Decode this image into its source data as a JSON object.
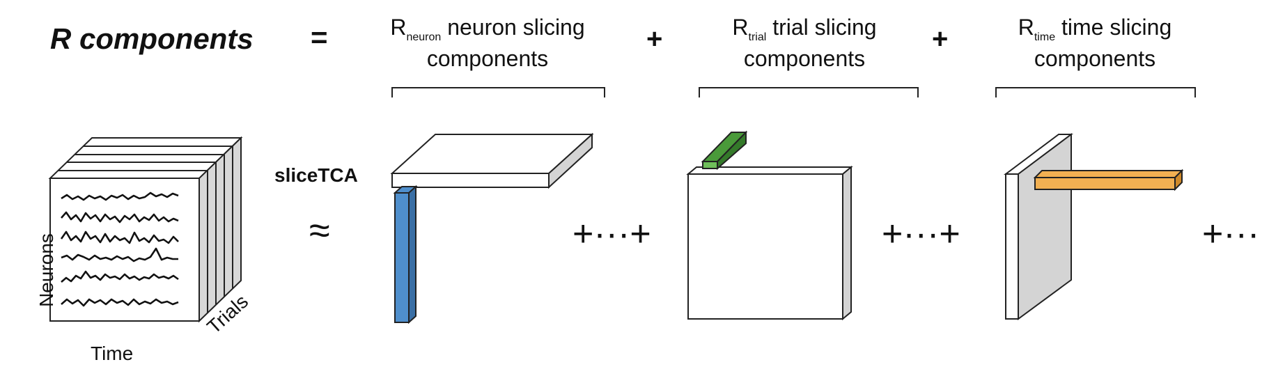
{
  "header": {
    "title": "R components",
    "equals": "=",
    "plus": "+"
  },
  "groups": [
    {
      "r_main": "R",
      "r_sub": "neuron",
      "label_line1": "neuron slicing",
      "label_line2": "components"
    },
    {
      "r_main": "R",
      "r_sub": "trial",
      "label_line1": "trial slicing",
      "label_line2": "components"
    },
    {
      "r_main": "R",
      "r_sub": "time",
      "label_line1": "time slicing",
      "label_line2": "components"
    }
  ],
  "data_tensor": {
    "y_label": "Neurons",
    "x_label": "Time",
    "z_label": "Trials"
  },
  "method": {
    "label": "sliceTCA",
    "approx": "≈",
    "continuation": "+···+",
    "tail": "+···"
  },
  "colors": {
    "neuron_factor": "#4f8fcc",
    "trial_factor": "#4a9a3a",
    "time_factor": "#f2b052",
    "slice_side": "#d4d4d4"
  }
}
